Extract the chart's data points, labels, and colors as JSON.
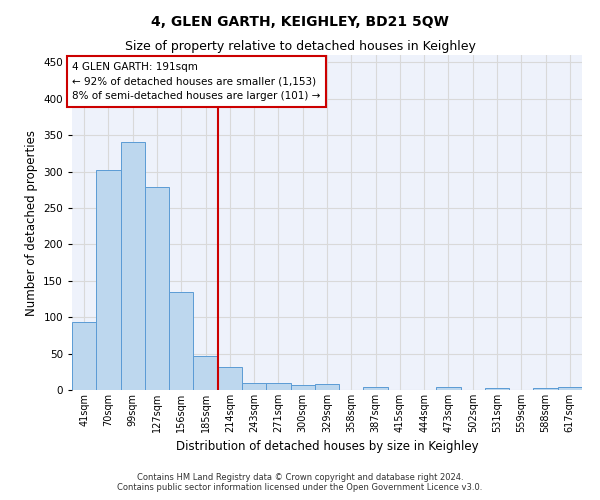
{
  "title": "4, GLEN GARTH, KEIGHLEY, BD21 5QW",
  "subtitle": "Size of property relative to detached houses in Keighley",
  "xlabel": "Distribution of detached houses by size in Keighley",
  "ylabel": "Number of detached properties",
  "footer_line1": "Contains HM Land Registry data © Crown copyright and database right 2024.",
  "footer_line2": "Contains public sector information licensed under the Open Government Licence v3.0.",
  "categories": [
    "41sqm",
    "70sqm",
    "99sqm",
    "127sqm",
    "156sqm",
    "185sqm",
    "214sqm",
    "243sqm",
    "271sqm",
    "300sqm",
    "329sqm",
    "358sqm",
    "387sqm",
    "415sqm",
    "444sqm",
    "473sqm",
    "502sqm",
    "531sqm",
    "559sqm",
    "588sqm",
    "617sqm"
  ],
  "values": [
    93,
    302,
    340,
    279,
    134,
    47,
    31,
    10,
    10,
    7,
    8,
    0,
    4,
    0,
    0,
    4,
    0,
    3,
    0,
    3,
    4
  ],
  "bar_color": "#bdd7ee",
  "bar_edge_color": "#5b9bd5",
  "property_line_x": 5.5,
  "annotation_text_line1": "4 GLEN GARTH: 191sqm",
  "annotation_text_line2": "← 92% of detached houses are smaller (1,153)",
  "annotation_text_line3": "8% of semi-detached houses are larger (101) →",
  "annotation_box_color": "#ffffff",
  "annotation_box_edge_color": "#cc0000",
  "vline_color": "#cc0000",
  "grid_color": "#d9d9d9",
  "ylim": [
    0,
    460
  ],
  "background_color": "#eef2fb",
  "title_fontsize": 10,
  "subtitle_fontsize": 9,
  "ylabel_fontsize": 8.5,
  "xlabel_fontsize": 8.5,
  "tick_fontsize": 7,
  "annotation_fontsize": 7.5,
  "footer_fontsize": 6
}
